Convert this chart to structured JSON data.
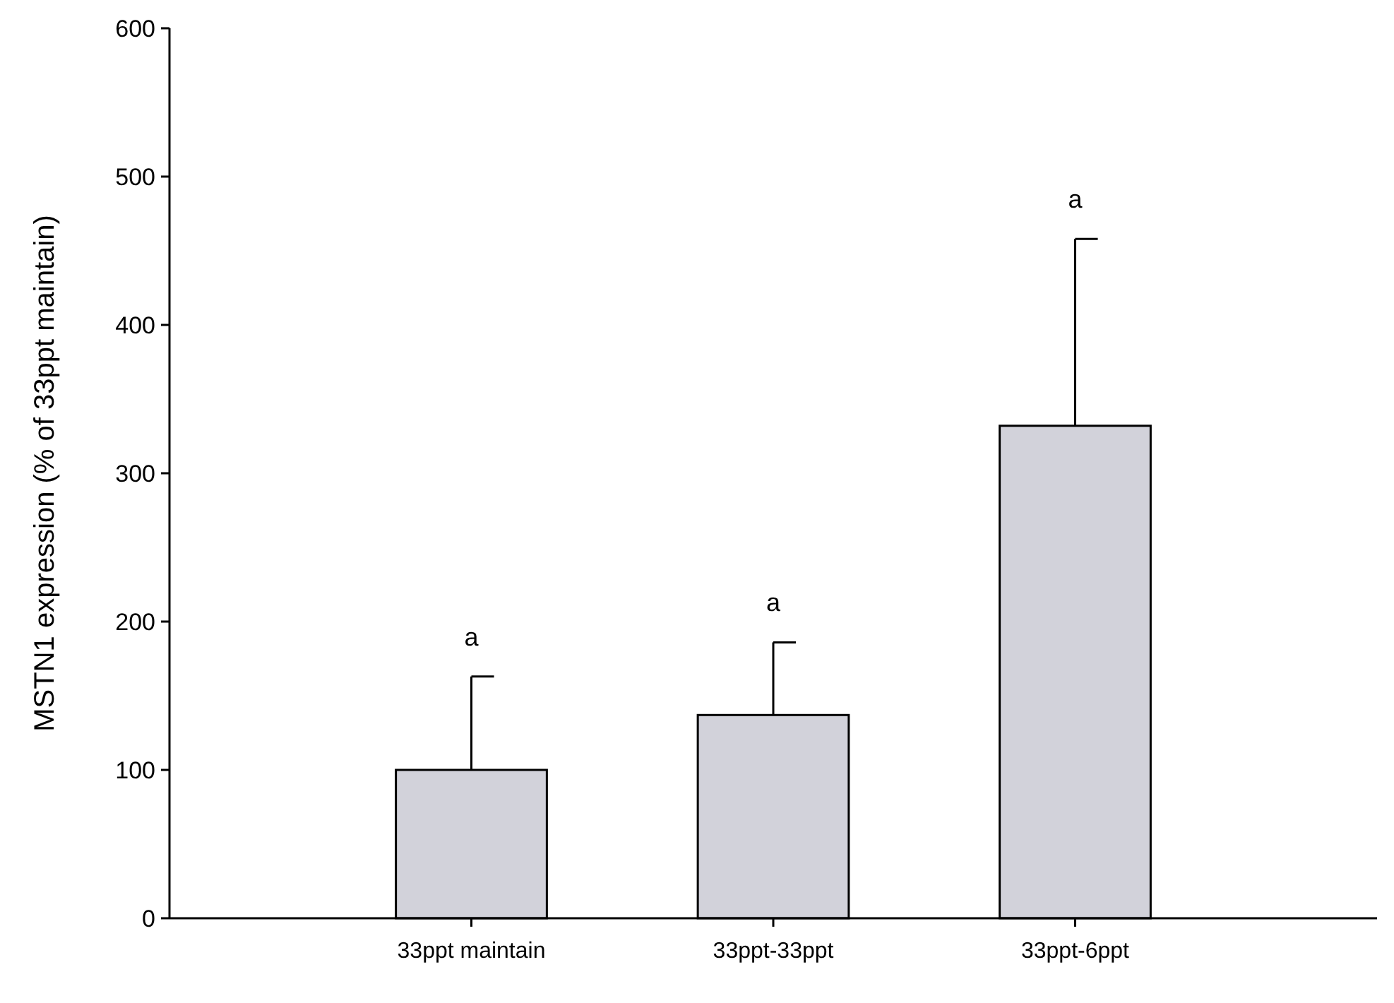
{
  "chart_data": {
    "type": "bar",
    "ylabel": "MSTN1 expression (% of 33ppt maintain)",
    "categories": [
      "33ppt maintain",
      "33ppt-33ppt",
      "33ppt-6ppt"
    ],
    "values": [
      100,
      137,
      332
    ],
    "errors": [
      [
        100,
        163
      ],
      [
        137,
        186
      ],
      [
        332,
        458
      ]
    ],
    "color": "#d2d2da",
    "ylim": [
      0,
      600
    ],
    "yticks": [
      0,
      100,
      200,
      300,
      400,
      500,
      600
    ],
    "annotations": [
      {
        "text": "a",
        "x": "33ppt maintain",
        "y": 163
      },
      {
        "text": "a",
        "x": "33ppt-33ppt",
        "y": 186
      },
      {
        "text": "a",
        "x": "33ppt-6ppt",
        "y": 458
      }
    ]
  }
}
